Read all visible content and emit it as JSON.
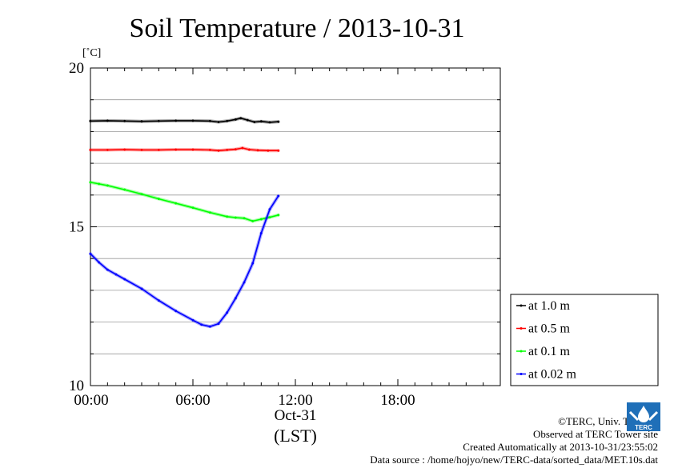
{
  "chart_data": {
    "type": "line",
    "title": "Soil Temperature / 2013-10-31",
    "ylabel": "[˚C]",
    "xlabel": "(LST)",
    "date_label": "Oct-31",
    "xlim": [
      0,
      24
    ],
    "ylim": [
      10,
      20
    ],
    "yticks": [
      {
        "value": 20,
        "label": "20"
      },
      {
        "value": 15,
        "label": "15"
      },
      {
        "value": 10,
        "label": "10"
      }
    ],
    "xticks": [
      {
        "value": 0,
        "label": "00:00"
      },
      {
        "value": 6,
        "label": "06:00"
      },
      {
        "value": 12,
        "label": "12:00"
      },
      {
        "value": 18,
        "label": "18:00"
      }
    ],
    "grid": "horizontal, every 1 ˚C",
    "legend_position": "right",
    "series": [
      {
        "name": "at 1.0 m",
        "color": "#000000",
        "x": [
          0,
          1,
          2,
          3,
          4,
          5,
          6,
          7,
          7.5,
          8,
          8.5,
          8.8,
          9.2,
          9.6,
          10,
          10.5,
          11.0
        ],
        "y": [
          18.33,
          18.34,
          18.33,
          18.32,
          18.33,
          18.34,
          18.34,
          18.33,
          18.3,
          18.33,
          18.38,
          18.42,
          18.36,
          18.3,
          18.32,
          18.29,
          18.31
        ]
      },
      {
        "name": "at 0.5 m",
        "color": "#ff0000",
        "x": [
          0,
          1,
          2,
          3,
          4,
          5,
          6,
          7,
          7.5,
          8,
          8.5,
          8.9,
          9.3,
          9.8,
          10.4,
          11.0
        ],
        "y": [
          17.42,
          17.42,
          17.43,
          17.42,
          17.42,
          17.43,
          17.43,
          17.42,
          17.4,
          17.42,
          17.44,
          17.48,
          17.43,
          17.41,
          17.4,
          17.4
        ]
      },
      {
        "name": "at 0.1 m",
        "color": "#00ff00",
        "x": [
          0,
          0.5,
          1,
          2,
          3,
          4,
          5,
          6,
          7,
          8,
          8.5,
          9,
          9.5,
          10,
          10.5,
          11.0
        ],
        "y": [
          16.4,
          16.35,
          16.3,
          16.17,
          16.03,
          15.88,
          15.74,
          15.6,
          15.45,
          15.32,
          15.29,
          15.27,
          15.18,
          15.24,
          15.3,
          15.37
        ]
      },
      {
        "name": "at 0.02 m",
        "color": "#0000ff",
        "x": [
          0,
          0.5,
          1,
          1.5,
          2,
          3,
          4,
          5,
          6,
          6.5,
          7,
          7.5,
          8,
          8.5,
          9,
          9.5,
          10,
          10.5,
          11.0
        ],
        "y": [
          14.15,
          13.88,
          13.65,
          13.5,
          13.35,
          13.05,
          12.68,
          12.35,
          12.06,
          11.92,
          11.86,
          11.95,
          12.3,
          12.75,
          13.25,
          13.85,
          14.8,
          15.55,
          15.97
        ]
      }
    ]
  },
  "credits": {
    "copyright": "©TERC, Univ. Tsukuba",
    "observed": "Observed at TERC Tower site",
    "created": "Created Automatically at 2013-10-31/23:55:02",
    "source": "Data source : /home/hojyo/new/TERC-data/sorted_data/MET.10s.dat",
    "logo_text": "TERC"
  }
}
